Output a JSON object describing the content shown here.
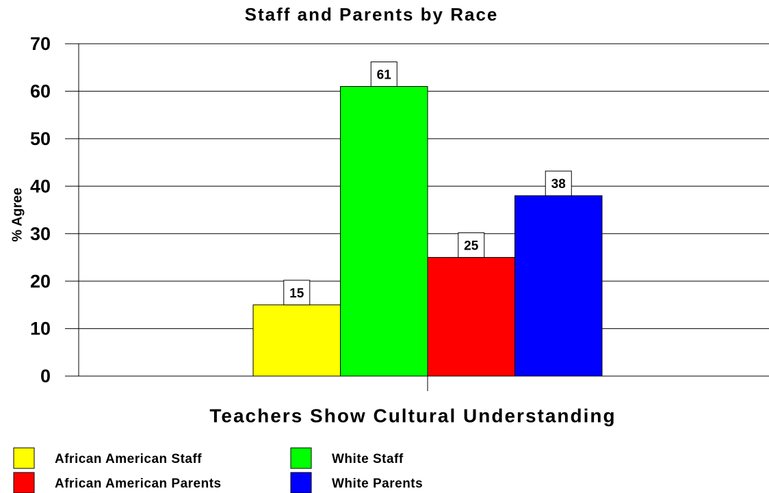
{
  "chart_data": {
    "type": "bar",
    "title": "Staff and Parents by Race",
    "y_label": "% Agree",
    "categories": [
      "Teachers Show Cultural Understanding"
    ],
    "series": [
      {
        "name": "African American Staff",
        "color": "#ffff00",
        "values": [
          15
        ]
      },
      {
        "name": "White Staff",
        "color": "#00ff00",
        "values": [
          61
        ]
      },
      {
        "name": "African American Parents",
        "color": "#ff0000",
        "values": [
          25
        ]
      },
      {
        "name": "White Parents",
        "color": "#0000ff",
        "values": [
          38
        ]
      }
    ],
    "ylim": [
      0,
      70
    ],
    "yticks": [
      0,
      10,
      20,
      30,
      40,
      50,
      60,
      70
    ],
    "grid": true,
    "legend": "bottom"
  }
}
